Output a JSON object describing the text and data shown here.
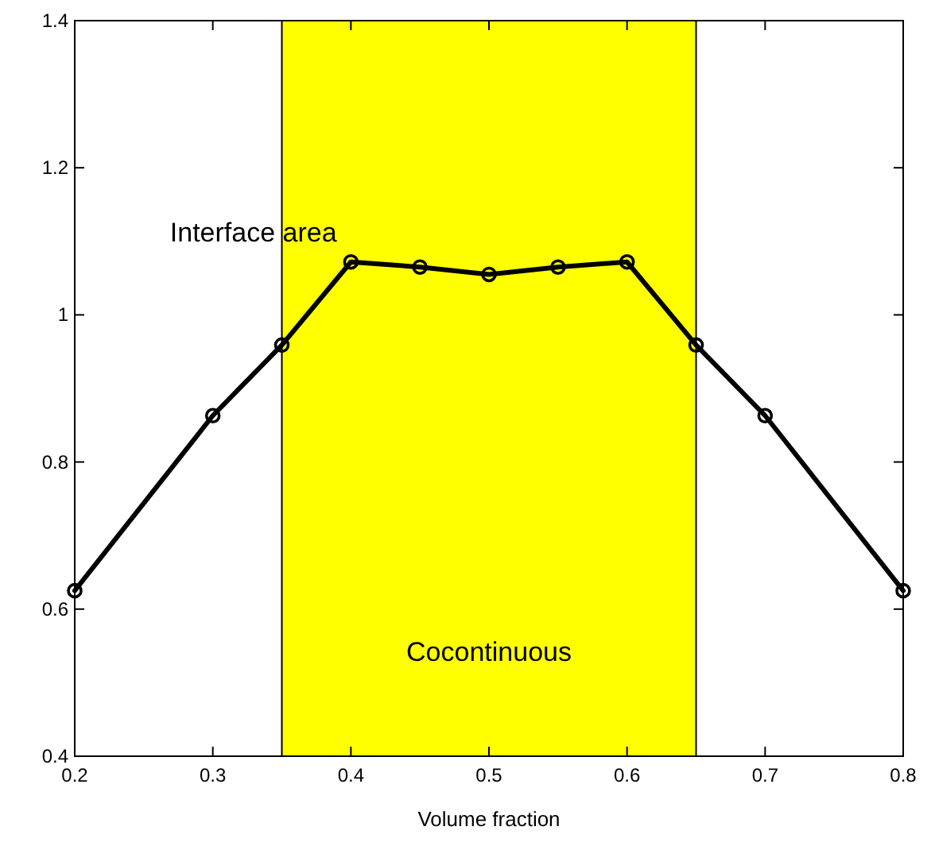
{
  "chart_data": {
    "type": "line",
    "xlabel": "Volume fraction",
    "x": [
      0.2,
      0.3,
      0.35,
      0.4,
      0.45,
      0.5,
      0.55,
      0.6,
      0.65,
      0.7,
      0.8
    ],
    "series": [
      {
        "color": "#000000",
        "values": [
          0.625,
          0.863,
          0.959,
          1.072,
          1.065,
          1.055,
          1.065,
          1.072,
          0.959,
          0.863,
          0.625
        ]
      }
    ],
    "xlim": [
      0.2,
      0.8
    ],
    "xticks": [
      0.2,
      0.3,
      0.4,
      0.5,
      0.6,
      0.7,
      0.8
    ],
    "ylim": [
      0.4,
      1.4
    ],
    "yticks": [
      0.4,
      0.6,
      0.8,
      {
        "value": 1,
        "label": "1"
      },
      1.2,
      1.4
    ],
    "bands": [
      {
        "axis": "x",
        "from": 0.35,
        "to": 0.65,
        "label": "Cocontinuous",
        "color": "#ffff00"
      }
    ],
    "annotations": [
      "Interface area"
    ],
    "marker": "circle",
    "line_style": "solid"
  }
}
